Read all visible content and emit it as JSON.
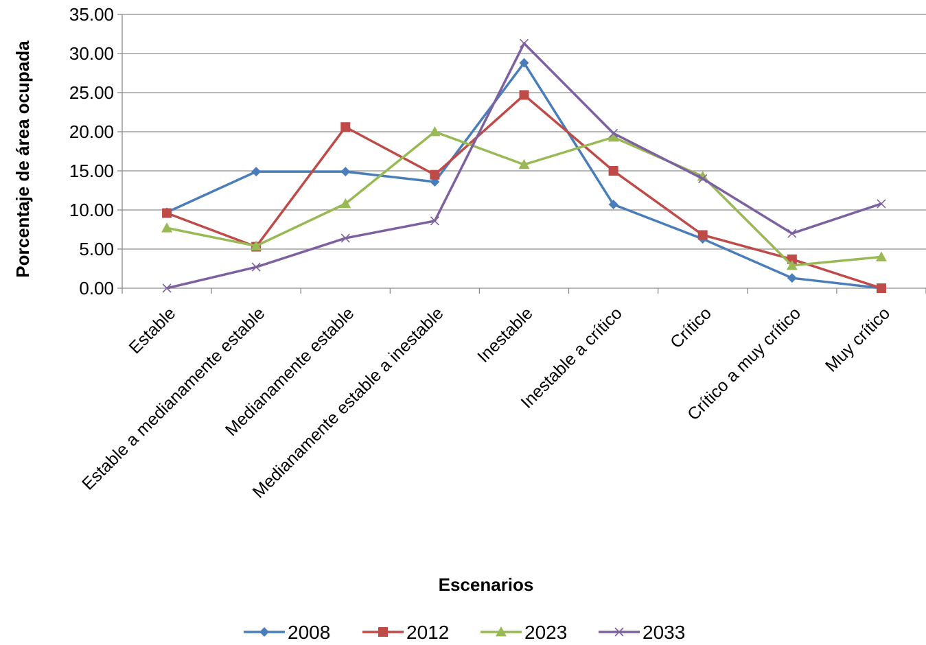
{
  "chart_data": {
    "type": "line",
    "title": "",
    "xlabel": "Escenarios",
    "ylabel": "Porcentaje de área ocupada",
    "ylim": [
      0,
      35
    ],
    "yticks": [
      "0.00",
      "5.00",
      "10.00",
      "15.00",
      "20.00",
      "25.00",
      "30.00",
      "35.00"
    ],
    "grid": "horizontal",
    "legend": "bottom",
    "categories": [
      "Estable",
      "Estable a medianamente estable",
      "Medianamente estable",
      "Medianamente estable a inestable",
      "Inestable",
      "Inestable a crítico",
      "Crítico",
      "Crítico a muy crítico",
      "Muy crítico"
    ],
    "series": [
      {
        "name": "2008",
        "color": "#4a7ebb",
        "marker": "diamond",
        "values": [
          9.7,
          14.9,
          14.9,
          13.6,
          28.8,
          10.7,
          6.3,
          1.3,
          0.0
        ]
      },
      {
        "name": "2012",
        "color": "#be4b48",
        "marker": "square",
        "values": [
          9.6,
          5.3,
          20.6,
          14.5,
          24.7,
          15.0,
          6.8,
          3.7,
          0.0
        ]
      },
      {
        "name": "2023",
        "color": "#98b954",
        "marker": "triangle",
        "values": [
          7.7,
          5.4,
          10.8,
          20.0,
          15.8,
          19.3,
          14.3,
          2.9,
          4.0
        ]
      },
      {
        "name": "2033",
        "color": "#7d60a0",
        "marker": "x",
        "values": [
          0.0,
          2.7,
          6.4,
          8.6,
          31.3,
          19.8,
          14.0,
          7.0,
          10.8
        ]
      }
    ]
  }
}
